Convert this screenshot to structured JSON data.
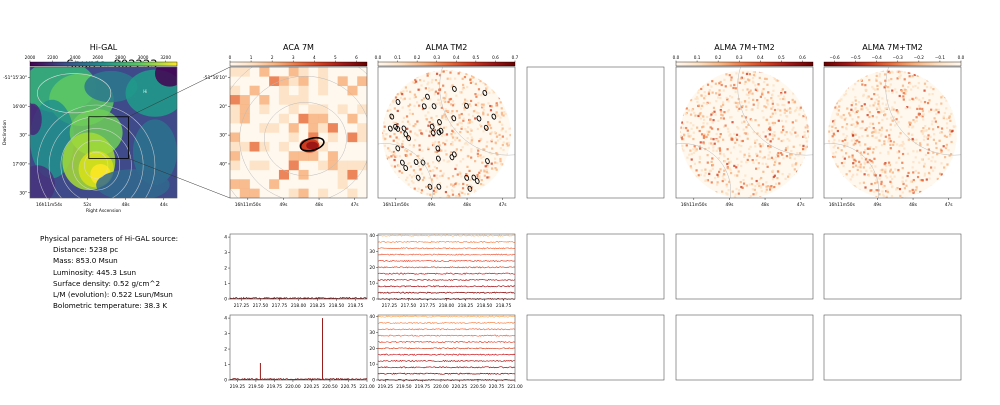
{
  "source_title": "Source: 802233",
  "colors": {
    "hot": [
      "#fff8ee",
      "#fde0c2",
      "#f7b27e",
      "#ea7140",
      "#cf3b1f",
      "#9d1616",
      "#6a0000"
    ],
    "viridis": [
      "#440154",
      "#3b528b",
      "#21918c",
      "#5ec962",
      "#fde725"
    ],
    "frame": "#555555"
  },
  "panels": [
    {
      "id": "higal",
      "title": "Hi-GAL",
      "colorbar_ticks": [
        "2000",
        "2200",
        "2400",
        "2600",
        "2800",
        "3000",
        "3200"
      ],
      "colorbar_range": [
        2000,
        3300
      ],
      "colormap": "viridis",
      "xticks": [
        "16h11m54s",
        "52s",
        "48s",
        "44s"
      ],
      "yticks": [
        "-51°15'30\"",
        "16'00\"",
        "30\"",
        "17'00\"",
        "30\""
      ],
      "xlabel": "Right Ascension",
      "ylabel": "Declination",
      "marker_text": "Hi"
    },
    {
      "id": "aca7m",
      "title": "ACA 7M",
      "colorbar_ticks": [
        "0",
        "1",
        "2",
        "3",
        "4",
        "5",
        "6"
      ],
      "colorbar_range": [
        0,
        6.5
      ],
      "colormap": "hot",
      "xticks": [
        "16h11m50s",
        "49s",
        "48s",
        "47s"
      ],
      "yticks": [
        "-51°16'10\"",
        "20\"",
        "30\"",
        "40\""
      ]
    },
    {
      "id": "tm2",
      "title": "ALMA TM2",
      "colorbar_ticks": [
        "0.0",
        "0.1",
        "0.2",
        "0.3",
        "0.4",
        "0.5",
        "0.6",
        "0.7"
      ],
      "colorbar_range": [
        0,
        0.7
      ],
      "colormap": "hot",
      "xticks": [
        "16h11m50s",
        "49s",
        "48s",
        "47s"
      ]
    },
    {
      "id": "empty1",
      "title": ""
    },
    {
      "id": "tm2_7m_a",
      "title": "ALMA 7M+TM2",
      "colorbar_ticks": [
        "0.0",
        "0.1",
        "0.2",
        "0.3",
        "0.4",
        "0.5",
        "0.6"
      ],
      "colorbar_range": [
        0,
        0.65
      ],
      "colormap": "hot",
      "xticks": [
        "16h11m50s",
        "49s",
        "48s",
        "47s"
      ]
    },
    {
      "id": "tm2_7m_b",
      "title": "ALMA 7M+TM2",
      "colorbar_ticks": [
        "−0.6",
        "−0.5",
        "−0.4",
        "−0.3",
        "−0.2",
        "−0.1",
        "0.0"
      ],
      "colorbar_range": [
        -0.65,
        0
      ],
      "colormap": "hot",
      "xticks": [
        "16h11m50s",
        "49s",
        "48s",
        "47s"
      ]
    }
  ],
  "params": {
    "heading": "Physical parameters of Hi-GAL source:",
    "lines": [
      "Distance: 5238 pc",
      "Mass: 853.0 Msun",
      "Luminosity: 445.3 Lsun",
      "Surface density: 0.52 g/cm^2",
      "L/M (evolution): 0.522 Lsun/Msun",
      "Bolometric temperature: 38.3 K"
    ]
  },
  "chart_data": [
    {
      "type": "line",
      "id": "aca_spec_1",
      "x_range": [
        217.1,
        218.9
      ],
      "ylim": [
        0,
        4.2
      ],
      "yticks": [
        "0",
        "1",
        "2",
        "3",
        "4"
      ],
      "xticks": [
        "217.25",
        "217.50",
        "217.75",
        "218.00",
        "218.25",
        "218.50",
        "218.75"
      ],
      "baseline": 0.05,
      "peaks": []
    },
    {
      "type": "line",
      "id": "aca_spec_2",
      "x_range": [
        219.15,
        221.0
      ],
      "ylim": [
        0,
        4.2
      ],
      "yticks": [
        "0",
        "1",
        "2",
        "3",
        "4"
      ],
      "xticks": [
        "219.25",
        "219.50",
        "219.75",
        "220.00",
        "220.25",
        "220.50",
        "220.75",
        "221.00"
      ],
      "baseline": 0.05,
      "peaks": [
        {
          "x": 219.56,
          "y": 1.1
        },
        {
          "x": 220.4,
          "y": 4.0
        }
      ]
    },
    {
      "type": "line",
      "id": "tm2_spec_1",
      "x_range": [
        217.1,
        218.9
      ],
      "ylim": [
        0,
        41
      ],
      "yticks": [
        "0",
        "10",
        "20",
        "30",
        "40"
      ],
      "xticks": [
        "217.25",
        "217.50",
        "217.75",
        "218.00",
        "218.25",
        "218.50",
        "218.75"
      ],
      "offsets": [
        0,
        4,
        8,
        12,
        16,
        20,
        24,
        28,
        32,
        36,
        40
      ]
    },
    {
      "type": "line",
      "id": "tm2_spec_2",
      "x_range": [
        219.15,
        221.0
      ],
      "ylim": [
        0,
        41
      ],
      "yticks": [
        "0",
        "10",
        "20",
        "30",
        "40"
      ],
      "xticks": [
        "219.25",
        "219.50",
        "219.75",
        "220.00",
        "220.25",
        "220.50",
        "220.75",
        "221.00"
      ],
      "offsets": [
        0,
        4,
        8,
        12,
        16,
        20,
        24,
        28,
        32,
        36,
        40
      ]
    }
  ]
}
